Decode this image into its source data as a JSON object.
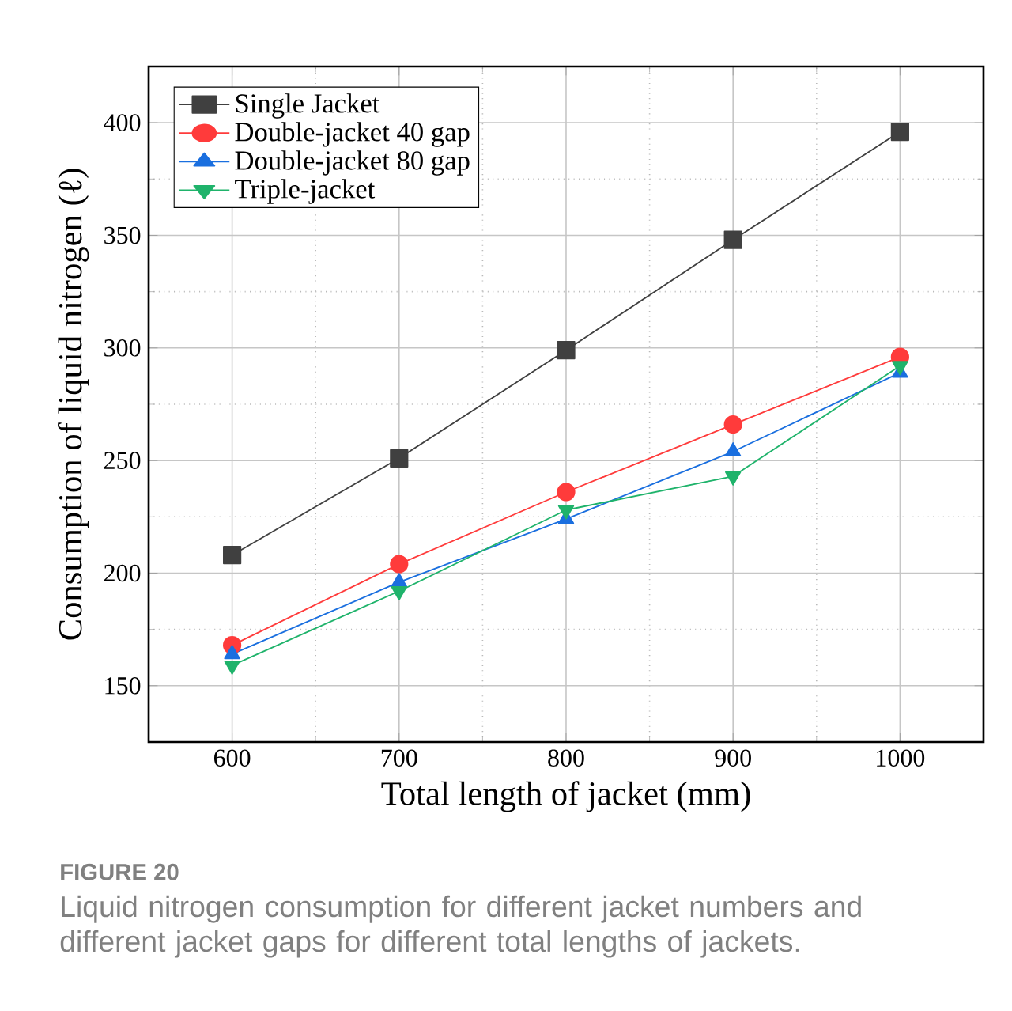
{
  "chart_data": {
    "type": "line",
    "xlabel": "Total length of jacket (mm)",
    "ylabel": "Consumption of liquid nitrogen (ℓ)",
    "x": [
      600,
      700,
      800,
      900,
      1000
    ],
    "series": [
      {
        "name": "Single Jacket",
        "color": "#404040",
        "marker": "square",
        "values": [
          208,
          251,
          299,
          348,
          396
        ]
      },
      {
        "name": "Double-jacket 40 gap",
        "color": "#ff3b3b",
        "marker": "circle",
        "values": [
          168,
          204,
          236,
          266,
          296
        ]
      },
      {
        "name": "Double-jacket 80 gap",
        "color": "#1a6fdf",
        "marker": "triangle",
        "values": [
          164,
          196,
          224,
          254,
          289
        ]
      },
      {
        "name": "Triple-jacket",
        "color": "#1fb36b",
        "marker": "triangle-down",
        "values": [
          159,
          192,
          228,
          243,
          292
        ]
      }
    ],
    "xlim": [
      550,
      1050
    ],
    "ylim": [
      125,
      425
    ],
    "xticks": [
      600,
      700,
      800,
      900,
      1000
    ],
    "yticks": [
      150,
      200,
      250,
      300,
      350,
      400
    ],
    "grid": true,
    "legend": "top left",
    "line_style": "solid",
    "annotations": [
      "FIGURE 20",
      "Liquid nitrogen consumption for different jacket numbers and different jacket gaps for different total lengths of jackets."
    ]
  }
}
